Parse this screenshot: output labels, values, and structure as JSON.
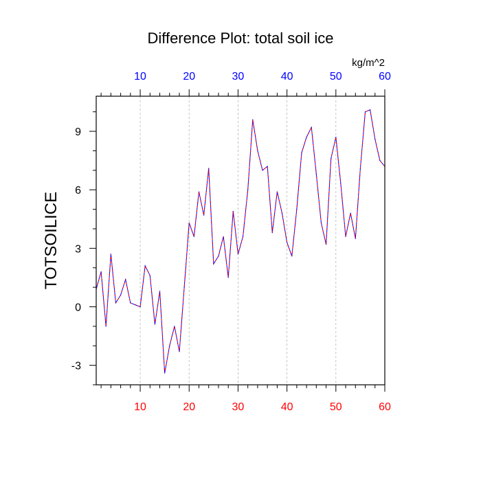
{
  "chart_data": {
    "type": "line",
    "title": "Difference Plot: total soil ice",
    "units_label": "kg/m^2",
    "ylabel": "TOTSOILICE",
    "xlabel": "",
    "xlim": [
      1,
      60
    ],
    "ylim": [
      -4,
      10.8
    ],
    "grid": "vertical dashed at major x ticks",
    "x_ticks": [
      10,
      20,
      30,
      40,
      50,
      60
    ],
    "y_ticks": [
      -3,
      0,
      3,
      6,
      9
    ],
    "x_tick_labels": [
      "10",
      "20",
      "30",
      "40",
      "50",
      "60"
    ],
    "y_tick_labels": [
      "-3",
      "0",
      "3",
      "6",
      "9"
    ],
    "bottom_axis_color": "#ff0000",
    "top_axis_color": "#0000ff",
    "series": [
      {
        "color": "#0000ff",
        "overlay_color": "#ff0000",
        "style": "dashed overlay",
        "x": [
          1,
          2,
          3,
          4,
          5,
          6,
          7,
          8,
          9,
          10,
          11,
          12,
          13,
          14,
          15,
          16,
          17,
          18,
          19,
          20,
          21,
          22,
          23,
          24,
          25,
          26,
          27,
          28,
          29,
          30,
          31,
          32,
          33,
          34,
          35,
          36,
          37,
          38,
          39,
          40,
          41,
          42,
          43,
          44,
          45,
          46,
          47,
          48,
          49,
          50,
          51,
          52,
          53,
          54,
          55,
          56,
          57,
          58,
          59,
          60
        ],
        "values": [
          0.9,
          1.8,
          -1.0,
          2.7,
          0.2,
          0.6,
          1.4,
          0.2,
          0.1,
          0.0,
          2.1,
          1.6,
          -0.9,
          0.8,
          -3.4,
          -2.0,
          -1.0,
          -2.3,
          1.0,
          4.3,
          3.6,
          5.9,
          4.7,
          7.1,
          2.2,
          2.6,
          3.6,
          1.5,
          4.9,
          2.7,
          3.6,
          6.0,
          9.6,
          8.0,
          7.0,
          7.2,
          3.8,
          5.9,
          4.8,
          3.3,
          2.6,
          5.0,
          7.9,
          8.7,
          9.2,
          6.8,
          4.3,
          3.2,
          7.6,
          8.7,
          6.3,
          3.6,
          4.8,
          3.5,
          7.1,
          10.0,
          10.1,
          8.6,
          7.5,
          7.2
        ]
      }
    ]
  }
}
